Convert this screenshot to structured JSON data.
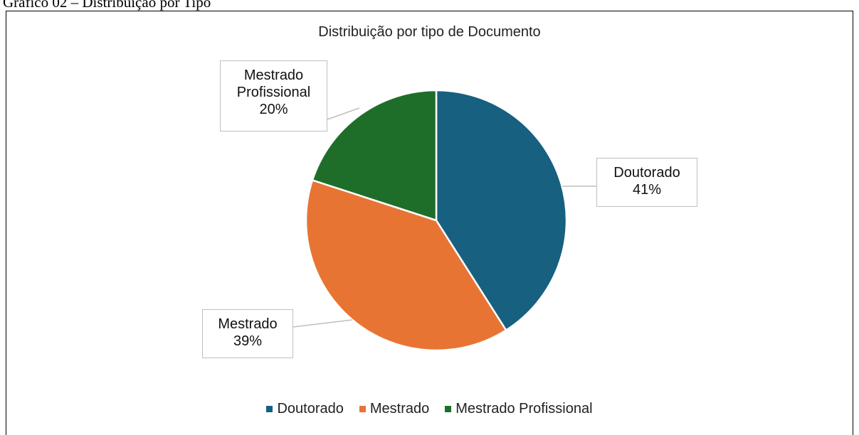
{
  "caption": "Gráfico 02 – Distribuição por Tipo",
  "chart_data": {
    "type": "pie",
    "title": "Distribuição por tipo de Documento",
    "categories": [
      "Doutorado",
      "Mestrado",
      "Mestrado Profissional"
    ],
    "values": [
      41,
      39,
      20
    ],
    "value_labels": [
      "41%",
      "39%",
      "20%"
    ],
    "colors": [
      "#17607f",
      "#e87434",
      "#1e6e2a"
    ],
    "legend": "bottom"
  }
}
